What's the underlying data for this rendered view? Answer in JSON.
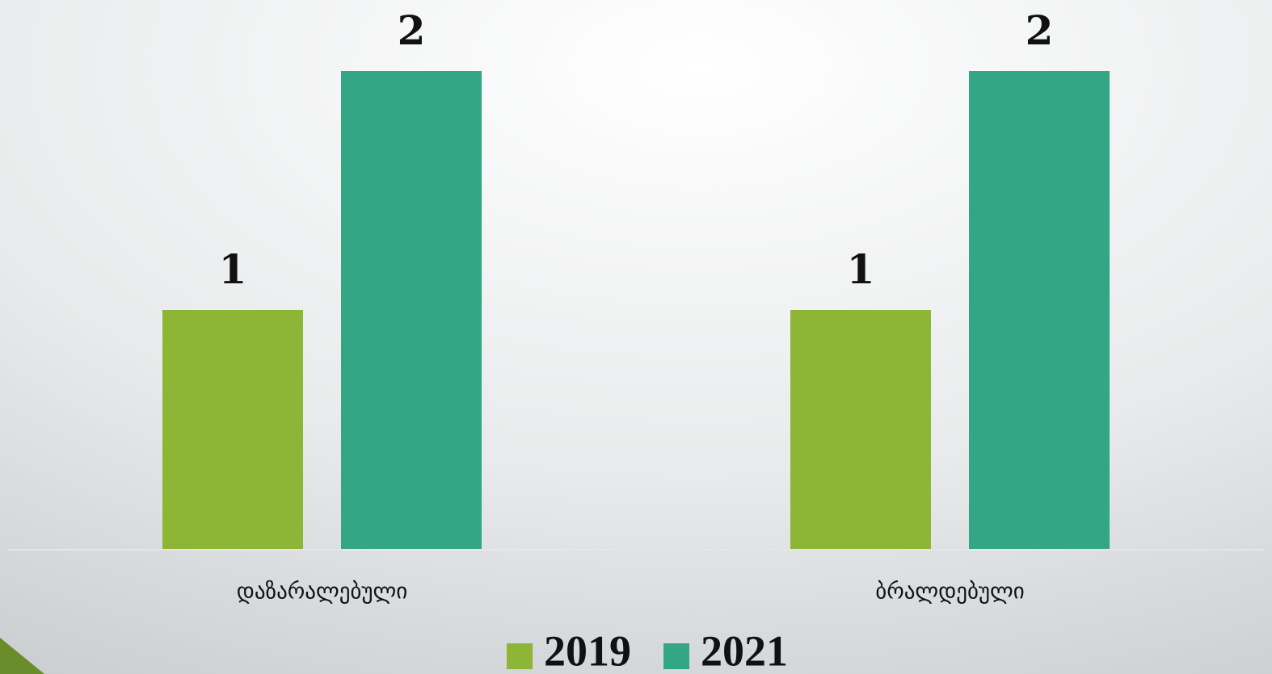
{
  "chart_data": {
    "type": "bar",
    "categories": [
      "დაზარალებული",
      "ბრალდებული"
    ],
    "series": [
      {
        "name": "2019",
        "color": "#8db536",
        "values": [
          1,
          1
        ]
      },
      {
        "name": "2021",
        "color": "#33a685",
        "values": [
          2,
          2
        ]
      }
    ],
    "ylim": [
      0,
      2
    ]
  }
}
